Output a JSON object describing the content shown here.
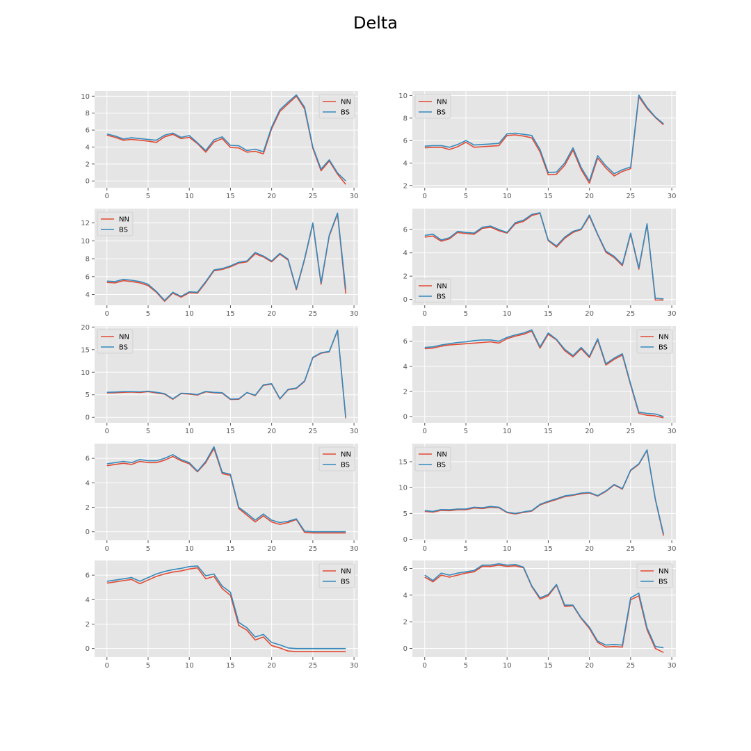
{
  "figure": {
    "title": "Delta"
  },
  "colors": {
    "nn": "#E24A33",
    "bs": "#348ABD",
    "panel_bg": "#E5E5E5",
    "grid": "#FFFFFF",
    "tick_text": "#555555"
  },
  "chart_data": [
    {
      "type": "line",
      "title": "",
      "xlabel": "",
      "ylabel": "",
      "xlim": [
        -1.5,
        30.5
      ],
      "ylim": [
        -0.8,
        10.6
      ],
      "xticks": [
        0,
        5,
        10,
        15,
        20,
        25,
        30
      ],
      "yticks": [
        0,
        2,
        4,
        6,
        8,
        10
      ],
      "legend": "top-right",
      "grid": true,
      "series": [
        {
          "name": "NN",
          "values": [
            5.4,
            5.15,
            4.8,
            4.9,
            4.8,
            4.7,
            4.55,
            5.2,
            5.5,
            5.0,
            5.15,
            4.4,
            3.4,
            4.6,
            5.0,
            3.95,
            3.9,
            3.4,
            3.5,
            3.2,
            6.15,
            8.2,
            9.1,
            10.0,
            8.5,
            3.85,
            1.2,
            2.35,
            0.8,
            -0.4
          ]
        },
        {
          "name": "BS",
          "values": [
            5.55,
            5.3,
            4.95,
            5.1,
            5.0,
            4.9,
            4.8,
            5.4,
            5.65,
            5.15,
            5.35,
            4.5,
            3.6,
            4.85,
            5.2,
            4.2,
            4.15,
            3.6,
            3.75,
            3.45,
            6.35,
            8.4,
            9.3,
            10.15,
            8.7,
            4.0,
            1.4,
            2.5,
            0.95,
            0.0
          ]
        }
      ]
    },
    {
      "type": "line",
      "title": "",
      "xlabel": "",
      "ylabel": "",
      "xlim": [
        -1.5,
        30.5
      ],
      "ylim": [
        1.8,
        10.4
      ],
      "xticks": [
        0,
        5,
        10,
        15,
        20,
        25,
        30
      ],
      "yticks": [
        2,
        4,
        6,
        8,
        10
      ],
      "legend": "top-left",
      "grid": true,
      "series": [
        {
          "name": "NN",
          "values": [
            5.35,
            5.4,
            5.4,
            5.2,
            5.45,
            5.85,
            5.4,
            5.45,
            5.5,
            5.55,
            6.45,
            6.5,
            6.4,
            6.25,
            5.0,
            2.95,
            3.0,
            3.8,
            5.15,
            3.4,
            2.2,
            4.45,
            3.55,
            2.85,
            3.25,
            3.5,
            9.9,
            8.85,
            8.05,
            7.4
          ]
        },
        {
          "name": "BS",
          "values": [
            5.5,
            5.55,
            5.55,
            5.4,
            5.65,
            6.0,
            5.6,
            5.65,
            5.7,
            5.75,
            6.6,
            6.65,
            6.55,
            6.45,
            5.2,
            3.15,
            3.2,
            4.0,
            5.35,
            3.6,
            2.4,
            4.65,
            3.75,
            3.05,
            3.4,
            3.65,
            10.05,
            8.95,
            8.1,
            7.5
          ]
        }
      ]
    },
    {
      "type": "line",
      "title": "",
      "xlabel": "",
      "ylabel": "",
      "xlim": [
        -1.5,
        30.5
      ],
      "ylim": [
        2.8,
        13.6
      ],
      "xticks": [
        0,
        5,
        10,
        15,
        20,
        25,
        30
      ],
      "yticks": [
        4,
        6,
        8,
        10,
        12
      ],
      "legend": "top-left",
      "grid": true,
      "series": [
        {
          "name": "NN",
          "values": [
            5.35,
            5.3,
            5.55,
            5.45,
            5.3,
            5.0,
            4.25,
            3.25,
            4.15,
            3.7,
            4.2,
            4.15,
            5.35,
            6.65,
            6.8,
            7.1,
            7.5,
            7.65,
            8.55,
            8.2,
            7.65,
            8.5,
            7.85,
            4.55,
            7.9,
            11.9,
            5.15,
            10.55,
            13.0,
            4.1
          ]
        },
        {
          "name": "BS",
          "values": [
            5.5,
            5.45,
            5.7,
            5.6,
            5.45,
            5.15,
            4.35,
            3.35,
            4.25,
            3.8,
            4.3,
            4.25,
            5.45,
            6.75,
            6.9,
            7.2,
            7.6,
            7.75,
            8.7,
            8.3,
            7.75,
            8.6,
            7.95,
            4.65,
            8.0,
            12.0,
            5.3,
            10.65,
            13.1,
            4.6
          ]
        }
      ]
    },
    {
      "type": "line",
      "title": "",
      "xlabel": "",
      "ylabel": "",
      "xlim": [
        -1.5,
        30.5
      ],
      "ylim": [
        -0.5,
        7.8
      ],
      "xticks": [
        0,
        5,
        10,
        15,
        20,
        25,
        30
      ],
      "yticks": [
        0,
        2,
        4,
        6
      ],
      "legend": "bottom-left",
      "grid": true,
      "series": [
        {
          "name": "NN",
          "values": [
            5.35,
            5.45,
            5.0,
            5.2,
            5.75,
            5.65,
            5.6,
            6.1,
            6.2,
            5.9,
            5.7,
            6.5,
            6.7,
            7.2,
            7.4,
            5.05,
            4.5,
            5.25,
            5.75,
            6.0,
            7.15,
            5.55,
            4.05,
            3.6,
            2.9,
            5.6,
            2.6,
            6.45,
            -0.05,
            -0.05
          ]
        },
        {
          "name": "BS",
          "values": [
            5.5,
            5.6,
            5.1,
            5.3,
            5.85,
            5.75,
            5.7,
            6.2,
            6.3,
            6.0,
            5.75,
            6.6,
            6.8,
            7.3,
            7.45,
            5.1,
            4.6,
            5.35,
            5.85,
            6.05,
            7.25,
            5.6,
            4.15,
            3.7,
            3.0,
            5.7,
            2.7,
            6.5,
            0.1,
            0.05
          ]
        }
      ]
    },
    {
      "type": "line",
      "title": "",
      "xlabel": "",
      "ylabel": "",
      "xlim": [
        -1.5,
        30.5
      ],
      "ylim": [
        -1.2,
        20.2
      ],
      "xticks": [
        0,
        5,
        10,
        15,
        20,
        25,
        30
      ],
      "yticks": [
        0,
        5,
        10,
        15,
        20
      ],
      "legend": "top-left",
      "grid": true,
      "series": [
        {
          "name": "NN",
          "values": [
            5.4,
            5.45,
            5.55,
            5.6,
            5.5,
            5.7,
            5.4,
            5.15,
            4.0,
            5.25,
            5.15,
            4.95,
            5.65,
            5.45,
            5.35,
            3.95,
            4.0,
            5.45,
            4.8,
            7.1,
            7.35,
            4.05,
            6.1,
            6.4,
            7.95,
            13.2,
            14.2,
            14.5,
            19.2,
            -0.2
          ]
        },
        {
          "name": "BS",
          "values": [
            5.55,
            5.6,
            5.7,
            5.7,
            5.65,
            5.8,
            5.55,
            5.25,
            4.1,
            5.35,
            5.25,
            5.05,
            5.75,
            5.55,
            5.45,
            4.05,
            4.1,
            5.5,
            4.9,
            7.2,
            7.45,
            4.15,
            6.2,
            6.5,
            8.05,
            13.3,
            14.3,
            14.6,
            19.3,
            0.0
          ]
        }
      ]
    },
    {
      "type": "line",
      "title": "",
      "xlabel": "",
      "ylabel": "",
      "xlim": [
        -1.5,
        30.5
      ],
      "ylim": [
        -0.5,
        7.2
      ],
      "xticks": [
        0,
        5,
        10,
        15,
        20,
        25,
        30
      ],
      "yticks": [
        0,
        2,
        4,
        6
      ],
      "legend": "top-right",
      "grid": true,
      "series": [
        {
          "name": "NN",
          "values": [
            5.4,
            5.45,
            5.6,
            5.7,
            5.75,
            5.8,
            5.85,
            5.9,
            5.95,
            5.85,
            6.2,
            6.4,
            6.55,
            6.8,
            5.45,
            6.55,
            6.1,
            5.25,
            4.75,
            5.4,
            4.7,
            6.1,
            4.1,
            4.55,
            4.9,
            2.5,
            0.25,
            0.1,
            0.05,
            -0.1
          ]
        },
        {
          "name": "BS",
          "values": [
            5.5,
            5.55,
            5.7,
            5.8,
            5.9,
            5.95,
            6.05,
            6.1,
            6.1,
            6.0,
            6.3,
            6.5,
            6.65,
            6.9,
            5.55,
            6.65,
            6.15,
            5.35,
            4.85,
            5.5,
            4.8,
            6.2,
            4.2,
            4.65,
            5.0,
            2.6,
            0.35,
            0.25,
            0.2,
            0.0
          ]
        }
      ]
    },
    {
      "type": "line",
      "title": "",
      "xlabel": "",
      "ylabel": "",
      "xlim": [
        -1.5,
        30.5
      ],
      "ylim": [
        -0.7,
        7.2
      ],
      "xticks": [
        0,
        5,
        10,
        15,
        20,
        25,
        30
      ],
      "yticks": [
        0,
        2,
        4,
        6
      ],
      "legend": "top-right",
      "grid": true,
      "series": [
        {
          "name": "NN",
          "values": [
            5.4,
            5.5,
            5.6,
            5.5,
            5.75,
            5.65,
            5.65,
            5.85,
            6.15,
            5.8,
            5.55,
            4.9,
            5.65,
            6.8,
            4.75,
            4.6,
            1.9,
            1.35,
            0.8,
            1.3,
            0.8,
            0.6,
            0.75,
            1.0,
            -0.05,
            -0.1,
            -0.1,
            -0.1,
            -0.1,
            -0.1
          ]
        },
        {
          "name": "BS",
          "values": [
            5.55,
            5.65,
            5.75,
            5.65,
            5.9,
            5.8,
            5.8,
            6.0,
            6.3,
            5.9,
            5.65,
            4.95,
            5.75,
            6.95,
            4.85,
            4.7,
            2.0,
            1.5,
            0.95,
            1.45,
            0.95,
            0.75,
            0.85,
            1.05,
            0.05,
            0.0,
            0.0,
            0.0,
            0.0,
            0.0
          ]
        }
      ]
    },
    {
      "type": "line",
      "title": "",
      "xlabel": "",
      "ylabel": "",
      "xlim": [
        -1.5,
        30.5
      ],
      "ylim": [
        -0.2,
        18.5
      ],
      "xticks": [
        0,
        5,
        10,
        15,
        20,
        25,
        30
      ],
      "yticks": [
        0,
        5,
        10,
        15
      ],
      "legend": "top-left",
      "grid": true,
      "series": [
        {
          "name": "NN",
          "values": [
            5.4,
            5.25,
            5.6,
            5.55,
            5.7,
            5.7,
            6.05,
            5.95,
            6.2,
            6.1,
            5.15,
            4.9,
            5.2,
            5.45,
            6.65,
            7.2,
            7.7,
            8.25,
            8.5,
            8.8,
            8.95,
            8.35,
            9.25,
            10.5,
            9.7,
            13.3,
            14.5,
            17.2,
            7.7,
            0.7
          ]
        },
        {
          "name": "BS",
          "values": [
            5.55,
            5.4,
            5.75,
            5.7,
            5.85,
            5.85,
            6.2,
            6.1,
            6.35,
            6.2,
            5.25,
            5.0,
            5.3,
            5.55,
            6.75,
            7.35,
            7.85,
            8.4,
            8.6,
            8.95,
            9.05,
            8.45,
            9.35,
            10.6,
            9.8,
            13.4,
            14.6,
            17.3,
            7.8,
            1.0
          ]
        }
      ]
    },
    {
      "type": "line",
      "title": "",
      "xlabel": "",
      "ylabel": "",
      "xlim": [
        -1.5,
        30.5
      ],
      "ylim": [
        -0.7,
        7.2
      ],
      "xticks": [
        0,
        5,
        10,
        15,
        20,
        25,
        30
      ],
      "yticks": [
        0,
        2,
        4,
        6
      ],
      "legend": "top-right",
      "grid": true,
      "series": [
        {
          "name": "NN",
          "values": [
            5.35,
            5.45,
            5.55,
            5.65,
            5.3,
            5.6,
            5.9,
            6.1,
            6.25,
            6.35,
            6.5,
            6.6,
            5.7,
            5.9,
            4.9,
            4.35,
            1.9,
            1.5,
            0.7,
            0.95,
            0.25,
            0.05,
            -0.2,
            -0.25,
            -0.25,
            -0.25,
            -0.25,
            -0.25,
            -0.25,
            -0.25
          ]
        },
        {
          "name": "BS",
          "values": [
            5.5,
            5.6,
            5.7,
            5.8,
            5.5,
            5.8,
            6.1,
            6.3,
            6.45,
            6.55,
            6.7,
            6.75,
            5.95,
            6.1,
            5.1,
            4.6,
            2.15,
            1.7,
            0.95,
            1.15,
            0.5,
            0.3,
            0.05,
            0.0,
            0.0,
            0.0,
            0.0,
            0.0,
            0.0,
            0.0
          ]
        }
      ]
    },
    {
      "type": "line",
      "title": "",
      "xlabel": "",
      "ylabel": "",
      "xlim": [
        -1.5,
        30.5
      ],
      "ylim": [
        -0.65,
        6.6
      ],
      "xticks": [
        0,
        5,
        10,
        15,
        20,
        25,
        30
      ],
      "yticks": [
        0,
        2,
        4,
        6
      ],
      "legend": "top-right",
      "grid": true,
      "series": [
        {
          "name": "NN",
          "values": [
            5.35,
            5.0,
            5.5,
            5.35,
            5.5,
            5.65,
            5.75,
            6.15,
            6.15,
            6.25,
            6.15,
            6.2,
            6.05,
            4.65,
            3.7,
            3.95,
            4.75,
            3.15,
            3.2,
            2.25,
            1.5,
            0.45,
            0.1,
            0.15,
            0.1,
            3.65,
            3.95,
            1.4,
            0.0,
            -0.3
          ]
        },
        {
          "name": "BS",
          "values": [
            5.5,
            5.1,
            5.65,
            5.5,
            5.65,
            5.75,
            5.85,
            6.25,
            6.25,
            6.35,
            6.25,
            6.3,
            6.1,
            4.7,
            3.8,
            4.05,
            4.8,
            3.25,
            3.25,
            2.3,
            1.6,
            0.55,
            0.25,
            0.3,
            0.25,
            3.8,
            4.15,
            1.55,
            0.15,
            0.05
          ]
        }
      ]
    }
  ]
}
